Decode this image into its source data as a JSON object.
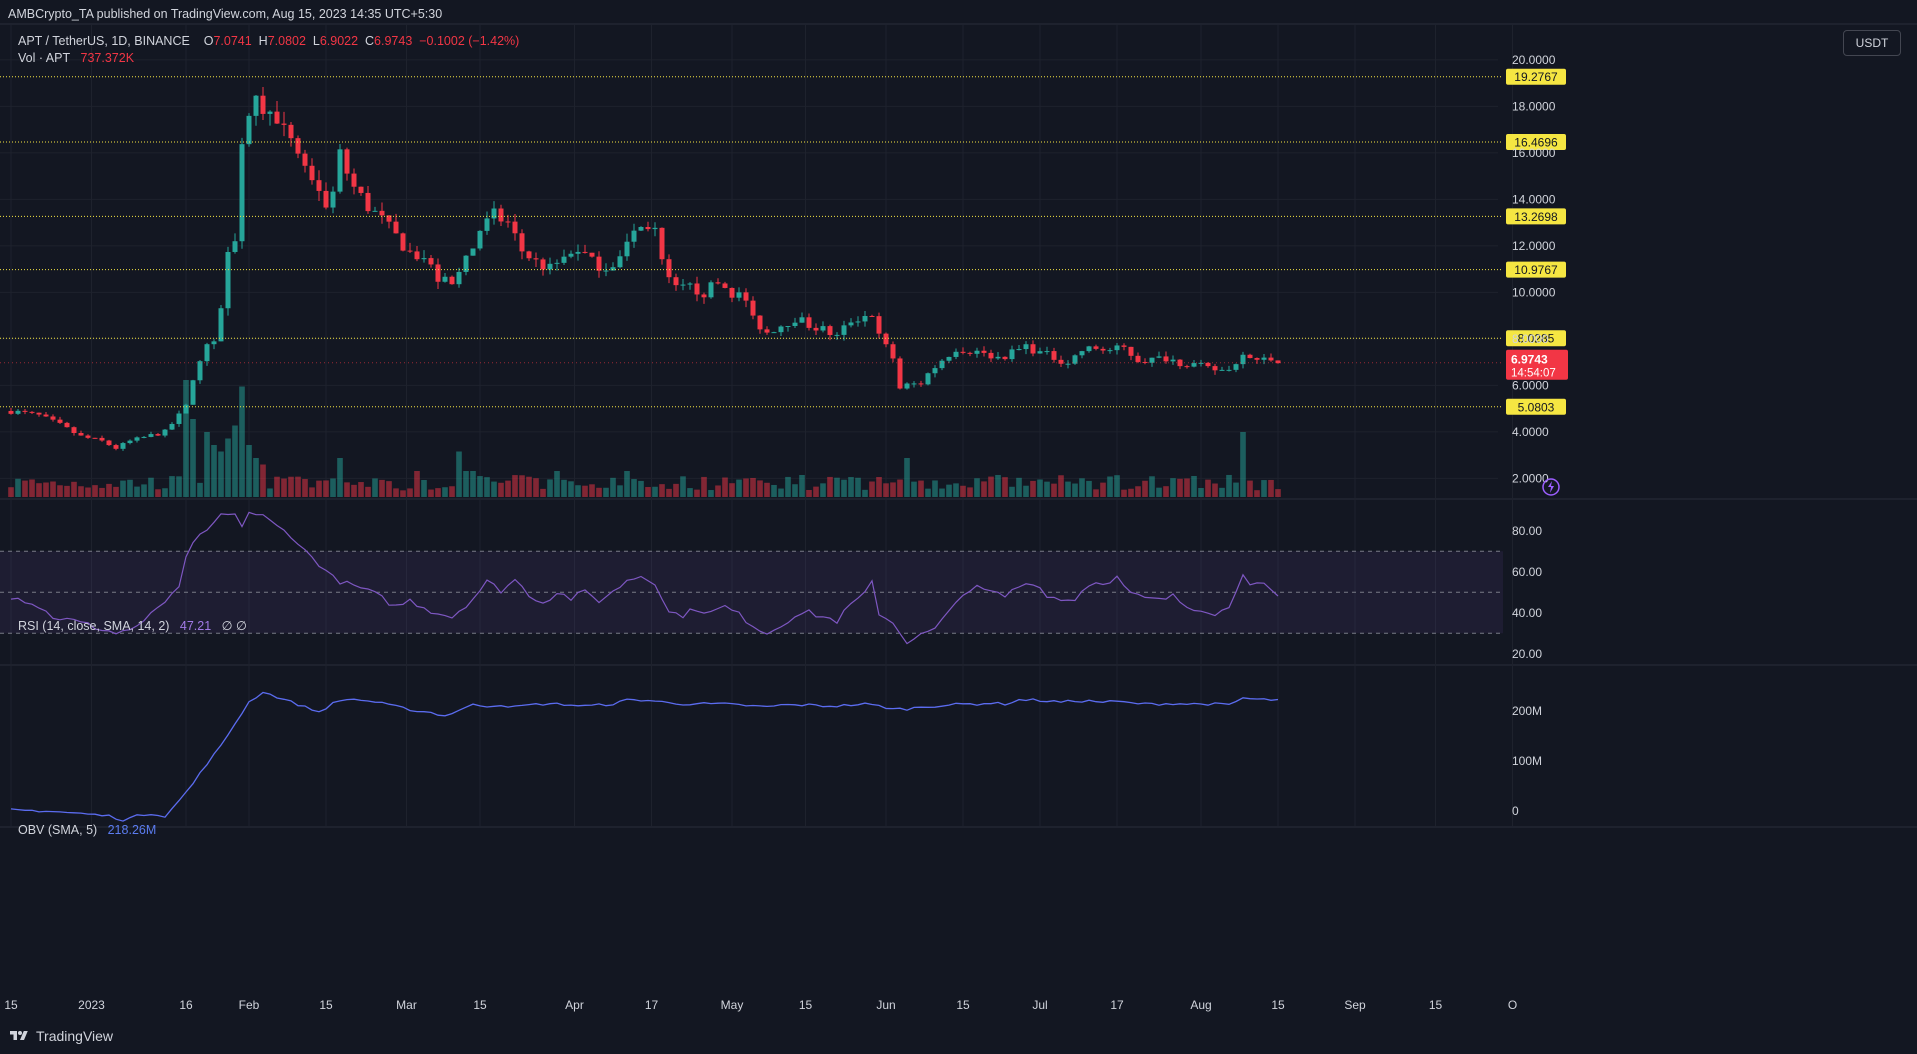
{
  "header": {
    "published": "AMBCrypto_TA published on TradingView.com, Aug 15, 2023 14:35 UTC+5:30",
    "symbol": "APT / TetherUS, 1D, BINANCE",
    "open_label": "O",
    "open": "7.0741",
    "high_label": "H",
    "high": "7.0802",
    "low_label": "L",
    "low": "6.9022",
    "close_label": "C",
    "close": "6.9743",
    "change": "−0.1002 (−1.42%)",
    "vol_label": "Vol · APT",
    "vol_value": "737.372K"
  },
  "currency_button": "USDT",
  "rsi_label": "RSI (14, close, SMA, 14, 2)",
  "rsi_value": "47.21",
  "rsi_extra": "∅ ∅",
  "obv_label": "OBV (SMA, 5)",
  "obv_value": "218.26M",
  "footer": {
    "brand": "TradingView"
  },
  "colors": {
    "up": "#26a69a",
    "down": "#f23645",
    "level": "#f5e642",
    "rsi": "#7e57c2",
    "obv": "#5b6cf0",
    "bg": "#131722"
  },
  "chart_data": {
    "type": "candlestick",
    "price_axis": {
      "range": [
        1.2,
        21.5
      ],
      "ticks": [
        "20.0000",
        "18.0000",
        "16.0000",
        "14.0000",
        "12.0000",
        "10.0000",
        "8.0000",
        "6.0000",
        "4.0000",
        "2.0000"
      ]
    },
    "current_price": {
      "value": "6.9743",
      "countdown": "14:54:07"
    },
    "levels": [
      "19.2767",
      "16.4696",
      "13.2698",
      "10.9767",
      "8.0285",
      "5.0803"
    ],
    "time_axis": {
      "labels": [
        "15",
        "2023",
        "16",
        "Feb",
        "15",
        "Mar",
        "15",
        "Apr",
        "17",
        "May",
        "15",
        "Jun",
        "15",
        "Jul",
        "17",
        "Aug",
        "15",
        "Sep",
        "15",
        "O"
      ],
      "label_bars": [
        0,
        11.5,
        25,
        34,
        45,
        56.5,
        67,
        80.5,
        91.5,
        103,
        113.5,
        125,
        136,
        147,
        158,
        170,
        181,
        192,
        203.5,
        214.5
      ]
    },
    "anchors": [
      [
        0,
        4.9
      ],
      [
        4,
        4.7
      ],
      [
        7,
        4.3
      ],
      [
        10,
        3.8
      ],
      [
        13,
        3.6
      ],
      [
        15,
        3.3
      ],
      [
        17,
        3.6
      ],
      [
        20,
        3.85
      ],
      [
        22,
        4.0
      ],
      [
        24,
        4.7
      ],
      [
        25,
        5.1
      ],
      [
        26,
        6.3
      ],
      [
        27,
        7.0
      ],
      [
        28,
        7.7
      ],
      [
        29,
        8.0
      ],
      [
        30,
        9.5
      ],
      [
        31,
        11.5
      ],
      [
        32,
        12.5
      ],
      [
        33,
        16.0
      ],
      [
        34,
        17.8
      ],
      [
        35,
        18.4
      ],
      [
        36,
        17.5
      ],
      [
        37,
        18.2
      ],
      [
        38,
        17.1
      ],
      [
        40,
        16.7
      ],
      [
        42,
        15.4
      ],
      [
        44,
        14.5
      ],
      [
        45,
        13.4
      ],
      [
        47,
        15.8
      ],
      [
        49,
        14.5
      ],
      [
        51,
        13.7
      ],
      [
        52,
        13.4
      ],
      [
        53,
        13.1
      ],
      [
        55,
        12.4
      ],
      [
        57,
        11.7
      ],
      [
        59,
        11.5
      ],
      [
        61,
        10.6
      ],
      [
        63,
        10.3
      ],
      [
        65,
        11.3
      ],
      [
        67,
        12.7
      ],
      [
        69,
        13.3
      ],
      [
        71,
        13.0
      ],
      [
        73,
        11.8
      ],
      [
        75,
        11.3
      ],
      [
        77,
        11.0
      ],
      [
        79,
        11.5
      ],
      [
        81,
        11.9
      ],
      [
        83,
        11.3
      ],
      [
        85,
        11.1
      ],
      [
        87,
        11.5
      ],
      [
        89,
        12.6
      ],
      [
        91,
        12.9
      ],
      [
        92,
        12.7
      ],
      [
        93,
        11.2
      ],
      [
        94,
        10.5
      ],
      [
        95,
        10.1
      ],
      [
        97,
        10.2
      ],
      [
        99,
        10.0
      ],
      [
        101,
        10.4
      ],
      [
        103,
        10.0
      ],
      [
        105,
        9.7
      ],
      [
        106,
        8.8
      ],
      [
        108,
        8.3
      ],
      [
        110,
        8.6
      ],
      [
        112,
        8.9
      ],
      [
        114,
        8.6
      ],
      [
        116,
        8.4
      ],
      [
        118,
        8.1
      ],
      [
        120,
        8.8
      ],
      [
        123,
        9.1
      ],
      [
        124,
        8.1
      ],
      [
        126,
        7.2
      ],
      [
        127,
        5.9
      ],
      [
        128,
        6.0
      ],
      [
        130,
        6.1
      ],
      [
        131,
        6.5
      ],
      [
        133,
        7.1
      ],
      [
        135,
        7.6
      ],
      [
        137,
        7.5
      ],
      [
        139,
        7.4
      ],
      [
        141,
        7.2
      ],
      [
        143,
        7.4
      ],
      [
        145,
        7.7
      ],
      [
        147,
        7.4
      ],
      [
        149,
        7.2
      ],
      [
        151,
        7.0
      ],
      [
        153,
        7.5
      ],
      [
        155,
        7.6
      ],
      [
        157,
        7.5
      ],
      [
        159,
        7.6
      ],
      [
        161,
        7.1
      ],
      [
        163,
        7.1
      ],
      [
        165,
        7.2
      ],
      [
        167,
        7.0
      ],
      [
        169,
        6.9
      ],
      [
        171,
        6.7
      ],
      [
        173,
        6.65
      ],
      [
        175,
        6.9
      ],
      [
        176,
        7.5
      ],
      [
        177,
        7.2
      ],
      [
        179,
        7.05
      ],
      [
        181,
        6.97
      ]
    ],
    "volume": {
      "spike_bars": [
        25,
        26,
        28,
        29,
        30,
        31,
        32,
        33,
        34,
        35,
        36,
        47,
        58,
        64,
        65,
        66,
        78,
        88,
        102,
        128,
        139,
        176
      ],
      "spike_values": [
        0.9,
        0.6,
        0.5,
        0.4,
        0.35,
        0.45,
        0.55,
        0.85,
        0.4,
        0.3,
        0.25,
        0.3,
        0.2,
        0.35,
        0.2,
        0.2,
        0.2,
        0.2,
        0.15,
        0.3,
        0.12,
        0.5
      ]
    },
    "rsi": {
      "range": [
        15,
        95
      ],
      "ticks": [
        "80.00",
        "60.00",
        "40.00",
        "20.00"
      ],
      "bands": [
        30,
        50,
        70
      ],
      "anchors": [
        [
          0,
          48
        ],
        [
          3,
          45
        ],
        [
          6,
          38
        ],
        [
          9,
          36
        ],
        [
          12,
          33
        ],
        [
          15,
          30
        ],
        [
          17,
          32
        ],
        [
          19,
          35
        ],
        [
          21,
          43
        ],
        [
          23,
          48
        ],
        [
          24,
          52
        ],
        [
          25,
          66
        ],
        [
          26,
          75
        ],
        [
          28,
          79
        ],
        [
          30,
          88
        ],
        [
          32,
          87
        ],
        [
          33,
          83
        ],
        [
          34,
          89
        ],
        [
          36,
          87
        ],
        [
          38,
          82
        ],
        [
          40,
          78
        ],
        [
          42,
          70
        ],
        [
          44,
          64
        ],
        [
          46,
          57
        ],
        [
          48,
          54
        ],
        [
          50,
          52
        ],
        [
          52,
          49
        ],
        [
          55,
          43
        ],
        [
          57,
          46
        ],
        [
          60,
          41
        ],
        [
          63,
          38
        ],
        [
          66,
          47
        ],
        [
          68,
          55
        ],
        [
          70,
          51
        ],
        [
          72,
          56
        ],
        [
          74,
          49
        ],
        [
          76,
          45
        ],
        [
          78,
          50
        ],
        [
          80,
          47
        ],
        [
          82,
          50
        ],
        [
          84,
          46
        ],
        [
          86,
          50
        ],
        [
          88,
          56
        ],
        [
          90,
          58
        ],
        [
          92,
          55
        ],
        [
          94,
          40
        ],
        [
          96,
          39
        ],
        [
          98,
          42
        ],
        [
          100,
          40
        ],
        [
          102,
          43
        ],
        [
          104,
          39
        ],
        [
          106,
          34
        ],
        [
          108,
          30
        ],
        [
          110,
          34
        ],
        [
          112,
          39
        ],
        [
          114,
          40
        ],
        [
          116,
          38
        ],
        [
          118,
          36
        ],
        [
          120,
          44
        ],
        [
          122,
          49
        ],
        [
          123,
          55
        ],
        [
          124,
          40
        ],
        [
          126,
          35
        ],
        [
          128,
          26
        ],
        [
          130,
          29
        ],
        [
          132,
          32
        ],
        [
          134,
          40
        ],
        [
          136,
          50
        ],
        [
          138,
          52
        ],
        [
          140,
          50
        ],
        [
          142,
          48
        ],
        [
          144,
          53
        ],
        [
          146,
          55
        ],
        [
          148,
          49
        ],
        [
          150,
          46
        ],
        [
          152,
          47
        ],
        [
          154,
          54
        ],
        [
          156,
          55
        ],
        [
          158,
          57
        ],
        [
          160,
          49
        ],
        [
          162,
          47
        ],
        [
          164,
          46
        ],
        [
          166,
          48
        ],
        [
          168,
          43
        ],
        [
          170,
          42
        ],
        [
          172,
          40
        ],
        [
          174,
          42
        ],
        [
          176,
          60
        ],
        [
          177,
          55
        ],
        [
          179,
          53
        ],
        [
          181,
          47.2
        ]
      ]
    },
    "obv": {
      "range": [
        -30,
        290
      ],
      "ticks": [
        "200M",
        "100M",
        "0"
      ],
      "anchors": [
        [
          0,
          2
        ],
        [
          5,
          0
        ],
        [
          10,
          -5
        ],
        [
          14,
          -10
        ],
        [
          16,
          -18
        ],
        [
          18,
          -10
        ],
        [
          20,
          -5
        ],
        [
          22,
          -10
        ],
        [
          24,
          20
        ],
        [
          26,
          55
        ],
        [
          28,
          95
        ],
        [
          30,
          130
        ],
        [
          32,
          175
        ],
        [
          34,
          218
        ],
        [
          36,
          238
        ],
        [
          38,
          228
        ],
        [
          40,
          218
        ],
        [
          42,
          208
        ],
        [
          44,
          198
        ],
        [
          46,
          215
        ],
        [
          48,
          224
        ],
        [
          50,
          222
        ],
        [
          52,
          218
        ],
        [
          54,
          212
        ],
        [
          56,
          206
        ],
        [
          58,
          200
        ],
        [
          60,
          197
        ],
        [
          62,
          190
        ],
        [
          64,
          202
        ],
        [
          66,
          212
        ],
        [
          68,
          210
        ],
        [
          70,
          212
        ],
        [
          72,
          208
        ],
        [
          74,
          212
        ],
        [
          76,
          214
        ],
        [
          78,
          214
        ],
        [
          80,
          212
        ],
        [
          82,
          210
        ],
        [
          84,
          212
        ],
        [
          86,
          214
        ],
        [
          88,
          222
        ],
        [
          90,
          222
        ],
        [
          92,
          220
        ],
        [
          94,
          216
        ],
        [
          96,
          214
        ],
        [
          98,
          215
        ],
        [
          100,
          214
        ],
        [
          102,
          214
        ],
        [
          104,
          212
        ],
        [
          106,
          210
        ],
        [
          108,
          208
        ],
        [
          110,
          212
        ],
        [
          112,
          212
        ],
        [
          114,
          212
        ],
        [
          116,
          210
        ],
        [
          118,
          210
        ],
        [
          120,
          212
        ],
        [
          122,
          214
        ],
        [
          124,
          210
        ],
        [
          126,
          204
        ],
        [
          128,
          204
        ],
        [
          130,
          208
        ],
        [
          132,
          210
        ],
        [
          134,
          212
        ],
        [
          136,
          214
        ],
        [
          138,
          214
        ],
        [
          140,
          216
        ],
        [
          142,
          214
        ],
        [
          144,
          222
        ],
        [
          146,
          222
        ],
        [
          148,
          220
        ],
        [
          150,
          218
        ],
        [
          152,
          220
        ],
        [
          154,
          220
        ],
        [
          156,
          218
        ],
        [
          158,
          219
        ],
        [
          160,
          216
        ],
        [
          162,
          214
        ],
        [
          164,
          214
        ],
        [
          166,
          215
        ],
        [
          168,
          214
        ],
        [
          170,
          214
        ],
        [
          172,
          214
        ],
        [
          174,
          212
        ],
        [
          176,
          226
        ],
        [
          178,
          223
        ],
        [
          181,
          222
        ]
      ]
    }
  }
}
